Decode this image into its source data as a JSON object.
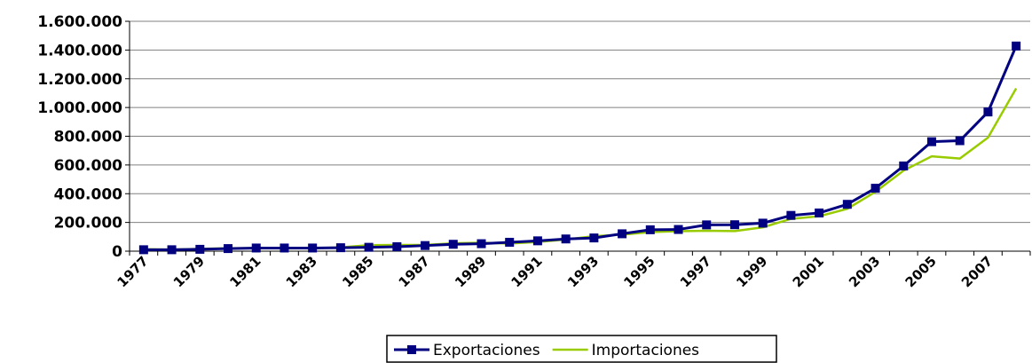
{
  "chart_data": {
    "type": "line",
    "title": "",
    "xlabel": "",
    "ylabel": "",
    "ylim": [
      0,
      1600000
    ],
    "y_ticks": [
      0,
      200000,
      400000,
      600000,
      800000,
      1000000,
      1200000,
      1400000,
      1600000
    ],
    "y_tick_labels": [
      "0",
      "200.000",
      "400.000",
      "600.000",
      "800.000",
      "1.000.000",
      "1.200.000",
      "1.400.000",
      "1.600.000"
    ],
    "x": [
      1977,
      1978,
      1979,
      1980,
      1981,
      1982,
      1983,
      1984,
      1985,
      1986,
      1987,
      1988,
      1989,
      1990,
      1991,
      1992,
      1993,
      1994,
      1995,
      1996,
      1997,
      1998,
      1999,
      2000,
      2001,
      2002,
      2003,
      2004,
      2005,
      2006,
      2007,
      2008
    ],
    "x_tick_labels": [
      "1977",
      "1979",
      "1981",
      "1983",
      "1985",
      "1987",
      "1989",
      "1991",
      "1993",
      "1995",
      "1997",
      "1999",
      "2001",
      "2003",
      "2005",
      "2007"
    ],
    "grid": true,
    "legend_position": "bottom",
    "series": [
      {
        "name": "Exportaciones",
        "color": "#000080",
        "marker": "square",
        "values": [
          10000,
          10000,
          13000,
          18000,
          22000,
          22000,
          22000,
          24000,
          27000,
          31000,
          39000,
          48000,
          52000,
          62000,
          72000,
          85000,
          92000,
          121000,
          149000,
          151000,
          183000,
          184000,
          195000,
          249000,
          266000,
          326000,
          438000,
          593000,
          762000,
          769000,
          969000,
          1428000
        ]
      },
      {
        "name": "Importaciones",
        "color": "#99cc00",
        "marker": "none",
        "values": [
          14000,
          11000,
          16000,
          20000,
          22000,
          19000,
          21000,
          26000,
          42000,
          43000,
          43000,
          55000,
          59000,
          53000,
          64000,
          81000,
          104000,
          115000,
          133000,
          139000,
          142000,
          140000,
          166000,
          225000,
          243000,
          295000,
          413000,
          561000,
          660000,
          645000,
          791000,
          1133000
        ]
      }
    ]
  }
}
